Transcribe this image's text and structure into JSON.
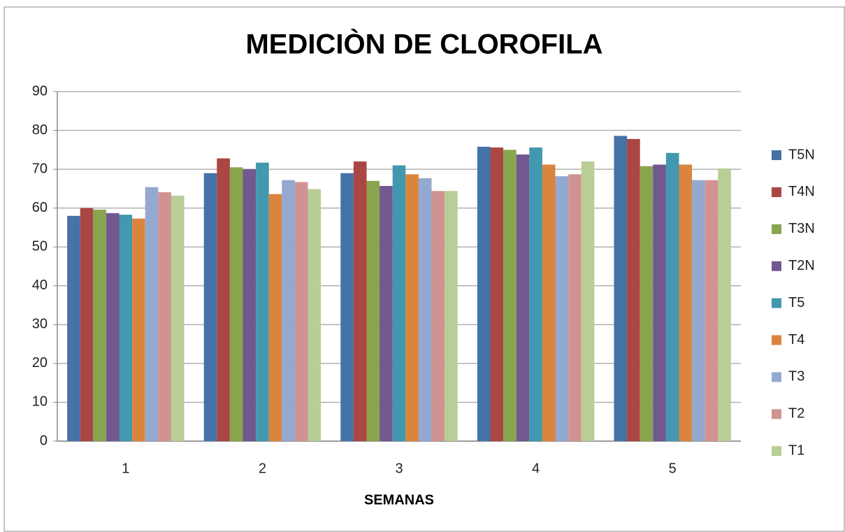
{
  "chart_data": {
    "type": "bar",
    "title": "MEDICIÒN DE CLOROFILA",
    "x_label": "SEMANAS",
    "categories": [
      "1",
      "2",
      "3",
      "4",
      "5"
    ],
    "series": [
      {
        "name": "T5N",
        "color": "#4572a7",
        "values": [
          58,
          69,
          69,
          75.8,
          78.6
        ]
      },
      {
        "name": "T4N",
        "color": "#aa4643",
        "values": [
          60,
          72.8,
          72,
          75.6,
          77.8
        ]
      },
      {
        "name": "T3N",
        "color": "#89a54e",
        "values": [
          59.6,
          70.5,
          67,
          75,
          70.8
        ]
      },
      {
        "name": "T2N",
        "color": "#71588f",
        "values": [
          58.7,
          70,
          65.7,
          73.8,
          71.2
        ]
      },
      {
        "name": "T5",
        "color": "#4198af",
        "values": [
          58.3,
          71.7,
          71,
          75.6,
          74.2
        ]
      },
      {
        "name": "T4",
        "color": "#db843d",
        "values": [
          57.3,
          63.6,
          68.7,
          71.2,
          71.2
        ]
      },
      {
        "name": "T3",
        "color": "#93a9cf",
        "values": [
          65.4,
          67.2,
          67.7,
          68.2,
          67.2
        ]
      },
      {
        "name": "T2",
        "color": "#d19392",
        "values": [
          64.1,
          66.7,
          64.4,
          68.7,
          67.2
        ]
      },
      {
        "name": "T1",
        "color": "#b9cd96",
        "values": [
          63.2,
          64.9,
          64.4,
          72,
          70.2
        ]
      }
    ],
    "ylim": [
      0,
      90
    ],
    "yticks": [
      0,
      10,
      20,
      30,
      40,
      50,
      60,
      70,
      80,
      90
    ],
    "grid": true,
    "legend": "right"
  }
}
